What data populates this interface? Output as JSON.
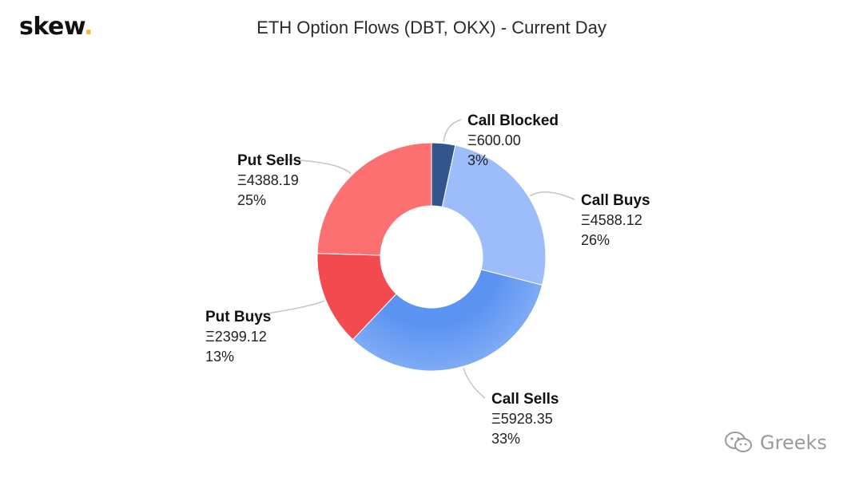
{
  "brand": {
    "name": "skew",
    "dot": "."
  },
  "watermark": {
    "text": "Greeks",
    "icon": "wechat-icon"
  },
  "colors": {
    "call_blocked": "#34558b",
    "call_buys": "#9dbcfa",
    "call_sells": "#5b93f2",
    "put_buys": "#f24a4f",
    "put_sells": "#fc7072",
    "leader": "#c4c4c4",
    "brand_dot": "#f2b93b"
  },
  "chart_data": {
    "type": "pie",
    "variant": "donut",
    "title": "ETH Option Flows (DBT, OKX) - Current Day",
    "currency_symbol": "Ξ",
    "slices": [
      {
        "name": "Call Blocked",
        "value": 600.0,
        "value_label": "Ξ600.00",
        "percent_label": "3%"
      },
      {
        "name": "Call Buys",
        "value": 4588.12,
        "value_label": "Ξ4588.12",
        "percent_label": "26%"
      },
      {
        "name": "Call Sells",
        "value": 5928.35,
        "value_label": "Ξ5928.35",
        "percent_label": "33%"
      },
      {
        "name": "Put Buys",
        "value": 2399.12,
        "value_label": "Ξ2399.12",
        "percent_label": "13%"
      },
      {
        "name": "Put Sells",
        "value": 4388.19,
        "value_label": "Ξ4388.19",
        "percent_label": "25%"
      }
    ]
  }
}
